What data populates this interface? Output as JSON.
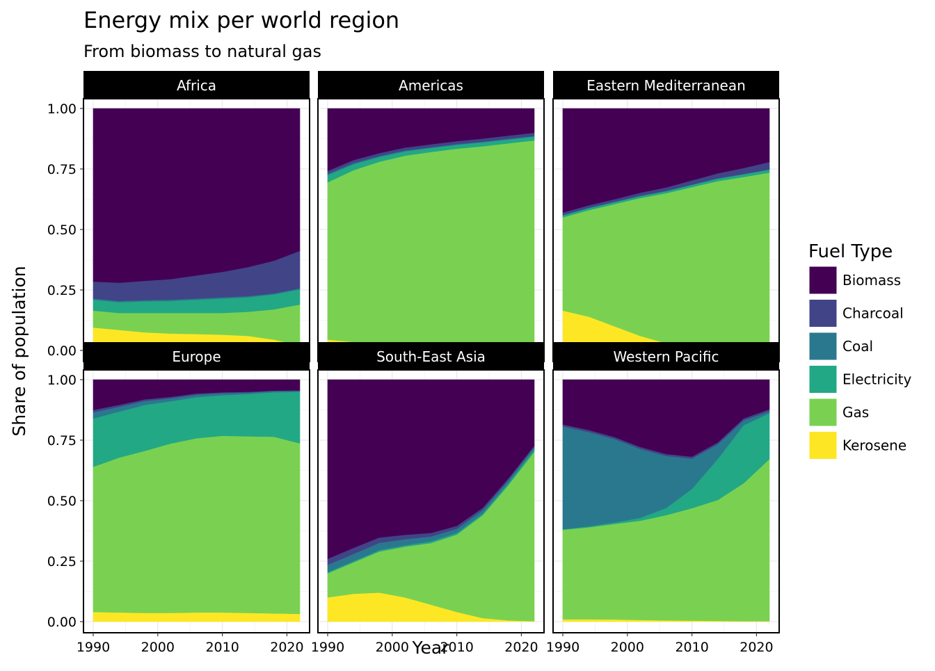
{
  "chart_data": {
    "type": "area",
    "stacked": true,
    "title": "Energy mix per world region",
    "subtitle": "From biomass to natural gas",
    "xlabel": "Year",
    "ylabel": "Share of population",
    "xlim": [
      1990,
      2022
    ],
    "ylim": [
      0,
      1.0
    ],
    "x_ticks": [
      "1990",
      "2000",
      "2010",
      "2020"
    ],
    "y_ticks": [
      "0.00",
      "0.25",
      "0.50",
      "0.75",
      "1.00"
    ],
    "legend": {
      "title": "Fuel Type",
      "position": "right",
      "entries": [
        "Biomass",
        "Charcoal",
        "Coal",
        "Electricity",
        "Gas",
        "Kerosene"
      ]
    },
    "colors": {
      "Biomass": "#440154",
      "Charcoal": "#414487",
      "Coal": "#2a788e",
      "Electricity": "#22a884",
      "Gas": "#7ad151",
      "Kerosene": "#fde725"
    },
    "stack_order": [
      "Kerosene",
      "Gas",
      "Electricity",
      "Coal",
      "Charcoal",
      "Biomass"
    ],
    "x": [
      1990,
      1994,
      1998,
      2002,
      2006,
      2010,
      2014,
      2018,
      2022
    ],
    "facets": [
      {
        "name": "Africa",
        "series": [
          {
            "name": "Kerosene",
            "values": [
              0.095,
              0.085,
              0.075,
              0.07,
              0.068,
              0.065,
              0.06,
              0.045,
              0.02
            ]
          },
          {
            "name": "Gas",
            "values": [
              0.07,
              0.07,
              0.08,
              0.085,
              0.087,
              0.09,
              0.1,
              0.125,
              0.17
            ]
          },
          {
            "name": "Electricity",
            "values": [
              0.045,
              0.045,
              0.048,
              0.05,
              0.055,
              0.06,
              0.06,
              0.062,
              0.063
            ]
          },
          {
            "name": "Coal",
            "values": [
              0.005,
              0.005,
              0.005,
              0.005,
              0.005,
              0.005,
              0.005,
              0.004,
              0.004
            ]
          },
          {
            "name": "Charcoal",
            "values": [
              0.07,
              0.075,
              0.08,
              0.085,
              0.095,
              0.105,
              0.12,
              0.135,
              0.155
            ]
          },
          {
            "name": "Biomass",
            "values": [
              0.715,
              0.72,
              0.712,
              0.705,
              0.69,
              0.675,
              0.655,
              0.629,
              0.588
            ]
          }
        ]
      },
      {
        "name": "Americas",
        "series": [
          {
            "name": "Kerosene",
            "values": [
              0.045,
              0.035,
              0.025,
              0.015,
              0.01,
              0.006,
              0.004,
              0.003,
              0.002
            ]
          },
          {
            "name": "Gas",
            "values": [
              0.65,
              0.71,
              0.755,
              0.79,
              0.81,
              0.828,
              0.84,
              0.853,
              0.866
            ]
          },
          {
            "name": "Electricity",
            "values": [
              0.03,
              0.025,
              0.02,
              0.018,
              0.017,
              0.016,
              0.016,
              0.016,
              0.016
            ]
          },
          {
            "name": "Coal",
            "values": [
              0.005,
              0.005,
              0.004,
              0.004,
              0.003,
              0.003,
              0.003,
              0.003,
              0.003
            ]
          },
          {
            "name": "Charcoal",
            "values": [
              0.012,
              0.012,
              0.012,
              0.012,
              0.012,
              0.012,
              0.013,
              0.013,
              0.013
            ]
          },
          {
            "name": "Biomass",
            "values": [
              0.258,
              0.213,
              0.184,
              0.161,
              0.148,
              0.135,
              0.124,
              0.112,
              0.1
            ]
          }
        ]
      },
      {
        "name": "Eastern Mediterranean",
        "series": [
          {
            "name": "Kerosene",
            "values": [
              0.165,
              0.14,
              0.1,
              0.06,
              0.03,
              0.015,
              0.01,
              0.007,
              0.005
            ]
          },
          {
            "name": "Gas",
            "values": [
              0.385,
              0.44,
              0.505,
              0.57,
              0.62,
              0.66,
              0.69,
              0.71,
              0.73
            ]
          },
          {
            "name": "Electricity",
            "values": [
              0.008,
              0.008,
              0.008,
              0.008,
              0.008,
              0.009,
              0.01,
              0.011,
              0.012
            ]
          },
          {
            "name": "Coal",
            "values": [
              0.002,
              0.002,
              0.002,
              0.002,
              0.002,
              0.002,
              0.002,
              0.002,
              0.002
            ]
          },
          {
            "name": "Charcoal",
            "values": [
              0.01,
              0.01,
              0.01,
              0.012,
              0.014,
              0.017,
              0.02,
              0.024,
              0.03
            ]
          },
          {
            "name": "Biomass",
            "values": [
              0.43,
              0.4,
              0.375,
              0.348,
              0.326,
              0.297,
              0.268,
              0.246,
              0.221
            ]
          }
        ]
      },
      {
        "name": "Europe",
        "series": [
          {
            "name": "Kerosene",
            "values": [
              0.04,
              0.038,
              0.036,
              0.036,
              0.038,
              0.038,
              0.036,
              0.034,
              0.032
            ]
          },
          {
            "name": "Gas",
            "values": [
              0.6,
              0.64,
              0.67,
              0.7,
              0.72,
              0.73,
              0.73,
              0.73,
              0.705
            ]
          },
          {
            "name": "Electricity",
            "values": [
              0.2,
              0.19,
              0.19,
              0.175,
              0.17,
              0.168,
              0.175,
              0.184,
              0.213
            ]
          },
          {
            "name": "Coal",
            "values": [
              0.025,
              0.02,
              0.016,
              0.012,
              0.01,
              0.008,
              0.006,
              0.005,
              0.004
            ]
          },
          {
            "name": "Charcoal",
            "values": [
              0.01,
              0.008,
              0.007,
              0.006,
              0.005,
              0.004,
              0.003,
              0.002,
              0.002
            ]
          },
          {
            "name": "Biomass",
            "values": [
              0.125,
              0.104,
              0.081,
              0.071,
              0.057,
              0.052,
              0.05,
              0.045,
              0.044
            ]
          }
        ]
      },
      {
        "name": "South-East Asia",
        "series": [
          {
            "name": "Kerosene",
            "values": [
              0.1,
              0.115,
              0.12,
              0.1,
              0.07,
              0.04,
              0.015,
              0.005,
              0.002
            ]
          },
          {
            "name": "Gas",
            "values": [
              0.1,
              0.13,
              0.17,
              0.21,
              0.255,
              0.32,
              0.425,
              0.56,
              0.7
            ]
          },
          {
            "name": "Electricity",
            "values": [
              0.005,
              0.005,
              0.006,
              0.006,
              0.007,
              0.007,
              0.007,
              0.008,
              0.01
            ]
          },
          {
            "name": "Coal",
            "values": [
              0.03,
              0.03,
              0.03,
              0.025,
              0.02,
              0.017,
              0.014,
              0.012,
              0.01
            ]
          },
          {
            "name": "Charcoal",
            "values": [
              0.025,
              0.025,
              0.022,
              0.018,
              0.015,
              0.012,
              0.01,
              0.008,
              0.006
            ]
          },
          {
            "name": "Biomass",
            "values": [
              0.74,
              0.695,
              0.652,
              0.641,
              0.633,
              0.604,
              0.529,
              0.407,
              0.272
            ]
          }
        ]
      },
      {
        "name": "Western Pacific",
        "series": [
          {
            "name": "Kerosene",
            "values": [
              0.01,
              0.01,
              0.009,
              0.007,
              0.005,
              0.004,
              0.003,
              0.002,
              0.002
            ]
          },
          {
            "name": "Gas",
            "values": [
              0.37,
              0.38,
              0.395,
              0.41,
              0.435,
              0.465,
              0.5,
              0.57,
              0.67
            ]
          },
          {
            "name": "Electricity",
            "values": [
              0.002,
              0.004,
              0.006,
              0.012,
              0.03,
              0.08,
              0.17,
              0.24,
              0.19
            ]
          },
          {
            "name": "Coal",
            "values": [
              0.425,
              0.39,
              0.345,
              0.285,
              0.215,
              0.125,
              0.06,
              0.02,
              0.008
            ]
          },
          {
            "name": "Charcoal",
            "values": [
              0.008,
              0.008,
              0.008,
              0.008,
              0.008,
              0.008,
              0.008,
              0.008,
              0.008
            ]
          },
          {
            "name": "Biomass",
            "values": [
              0.185,
              0.208,
              0.237,
              0.278,
              0.307,
              0.318,
              0.259,
              0.16,
              0.122
            ]
          }
        ]
      }
    ]
  }
}
